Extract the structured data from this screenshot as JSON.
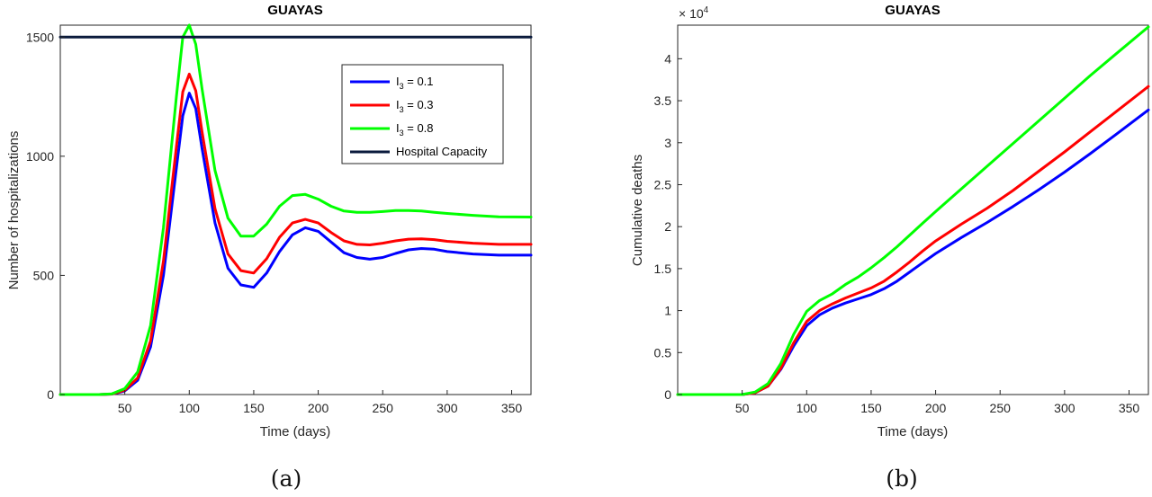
{
  "chart_data": [
    {
      "type": "line",
      "title": "GUAYAS",
      "xlabel": "Time (days)",
      "ylabel": "Number of hospitalizations",
      "panel_label": "(a)",
      "xlim": [
        0,
        365
      ],
      "ylim": [
        0,
        1500
      ],
      "xticks": [
        50,
        100,
        150,
        200,
        250,
        300,
        350
      ],
      "yticks": [
        0,
        500,
        1000,
        1500
      ],
      "legend_position": "upper-right",
      "series": [
        {
          "name": "I3 = 0.1",
          "legend_base": "I",
          "legend_sub": "3",
          "legend_rest": " = 0.1",
          "color": "#0000ff",
          "x": [
            0,
            30,
            40,
            50,
            60,
            70,
            80,
            90,
            95,
            100,
            105,
            110,
            120,
            130,
            140,
            150,
            160,
            170,
            180,
            190,
            200,
            210,
            220,
            230,
            240,
            250,
            260,
            270,
            280,
            290,
            300,
            320,
            340,
            365
          ],
          "y": [
            0,
            0,
            2,
            15,
            60,
            200,
            500,
            950,
            1170,
            1265,
            1200,
            1030,
            720,
            530,
            460,
            450,
            510,
            600,
            670,
            700,
            685,
            640,
            595,
            575,
            568,
            575,
            592,
            607,
            613,
            610,
            600,
            590,
            585,
            585
          ]
        },
        {
          "name": "I3 = 0.3",
          "legend_base": "I",
          "legend_sub": "3",
          "legend_rest": " = 0.3",
          "color": "#ff0000",
          "x": [
            0,
            30,
            40,
            50,
            60,
            70,
            80,
            90,
            95,
            100,
            105,
            110,
            120,
            130,
            140,
            150,
            160,
            170,
            180,
            190,
            200,
            210,
            220,
            230,
            240,
            250,
            260,
            270,
            280,
            290,
            300,
            320,
            340,
            365
          ],
          "y": [
            0,
            0,
            2,
            18,
            70,
            225,
            560,
            1040,
            1270,
            1345,
            1275,
            1100,
            780,
            590,
            520,
            510,
            570,
            660,
            720,
            735,
            720,
            680,
            645,
            630,
            628,
            635,
            645,
            652,
            653,
            650,
            643,
            635,
            630,
            630
          ]
        },
        {
          "name": "I3 = 0.8",
          "legend_base": "I",
          "legend_sub": "3",
          "legend_rest": " = 0.8",
          "color": "#00ff00",
          "x": [
            0,
            30,
            40,
            50,
            60,
            70,
            80,
            90,
            95,
            100,
            105,
            110,
            120,
            130,
            140,
            150,
            160,
            170,
            180,
            190,
            200,
            210,
            220,
            230,
            240,
            250,
            260,
            270,
            280,
            290,
            300,
            320,
            340,
            365
          ],
          "y": [
            0,
            0,
            3,
            25,
            95,
            290,
            700,
            1250,
            1500,
            1550,
            1470,
            1280,
            940,
            740,
            665,
            665,
            715,
            790,
            835,
            840,
            820,
            790,
            770,
            765,
            765,
            768,
            772,
            772,
            770,
            765,
            760,
            752,
            746,
            745
          ]
        },
        {
          "name": "Hospital Capacity",
          "legend_base": "Hospital Capacity",
          "legend_sub": "",
          "legend_rest": "",
          "color": "#0a1a3c",
          "x": [
            0,
            365
          ],
          "y": [
            1500,
            1500
          ]
        }
      ]
    },
    {
      "type": "line",
      "title": "GUAYAS",
      "xlabel": "Time (days)",
      "ylabel": "Cumulative deaths",
      "panel_label": "(b)",
      "exponent_base": "× 10",
      "exponent_power": "4",
      "xlim": [
        0,
        365
      ],
      "ylim": [
        0,
        4.4
      ],
      "xticks": [
        50,
        100,
        150,
        200,
        250,
        300,
        350
      ],
      "yticks": [
        0,
        0.5,
        1,
        1.5,
        2,
        2.5,
        3,
        3.5,
        4
      ],
      "series": [
        {
          "name": "I3 = 0.1",
          "color": "#0000ff",
          "x": [
            0,
            50,
            60,
            70,
            80,
            90,
            100,
            110,
            120,
            130,
            140,
            150,
            160,
            170,
            180,
            190,
            200,
            220,
            240,
            260,
            280,
            300,
            320,
            340,
            365
          ],
          "y": [
            0,
            0,
            0.02,
            0.1,
            0.3,
            0.58,
            0.82,
            0.95,
            1.03,
            1.09,
            1.14,
            1.19,
            1.26,
            1.35,
            1.46,
            1.57,
            1.68,
            1.87,
            2.05,
            2.24,
            2.44,
            2.65,
            2.87,
            3.1,
            3.39
          ]
        },
        {
          "name": "I3 = 0.3",
          "color": "#ff0000",
          "x": [
            0,
            50,
            60,
            70,
            80,
            90,
            100,
            110,
            120,
            130,
            140,
            150,
            160,
            170,
            180,
            190,
            200,
            220,
            240,
            260,
            280,
            300,
            320,
            340,
            365
          ],
          "y": [
            0,
            0,
            0.02,
            0.1,
            0.31,
            0.62,
            0.87,
            1.0,
            1.08,
            1.15,
            1.21,
            1.27,
            1.35,
            1.46,
            1.58,
            1.71,
            1.83,
            2.03,
            2.22,
            2.43,
            2.66,
            2.89,
            3.13,
            3.37,
            3.67
          ]
        },
        {
          "name": "I3 = 0.8",
          "color": "#00ff00",
          "x": [
            0,
            50,
            60,
            70,
            80,
            90,
            100,
            110,
            120,
            130,
            140,
            150,
            160,
            170,
            180,
            190,
            200,
            220,
            240,
            260,
            280,
            300,
            320,
            340,
            365
          ],
          "y": [
            0,
            0,
            0.03,
            0.13,
            0.37,
            0.72,
            0.99,
            1.12,
            1.2,
            1.31,
            1.4,
            1.51,
            1.63,
            1.76,
            1.9,
            2.04,
            2.18,
            2.45,
            2.72,
            2.99,
            3.26,
            3.53,
            3.8,
            4.06,
            4.38
          ]
        }
      ]
    }
  ]
}
